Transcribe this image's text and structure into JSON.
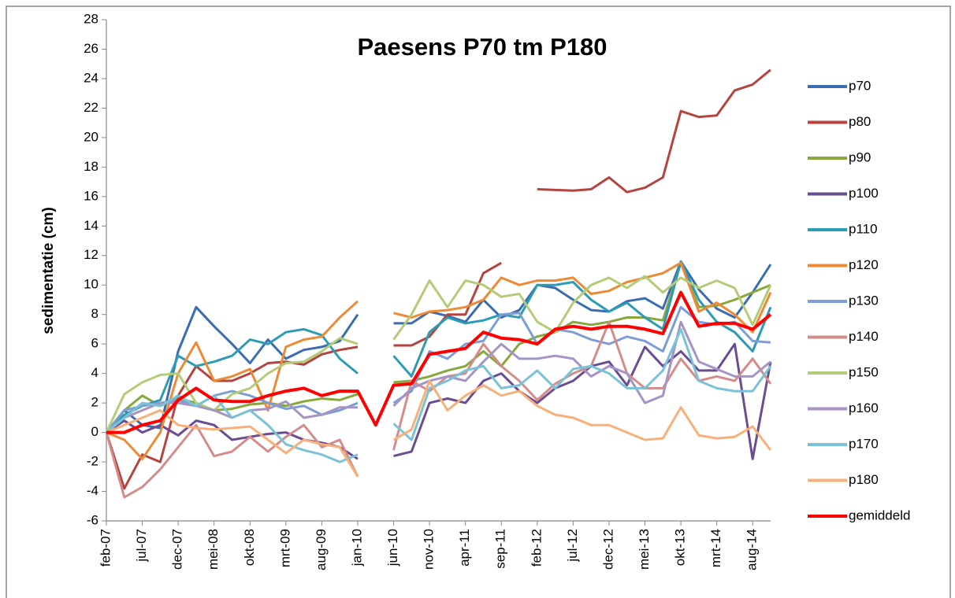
{
  "chart_data": {
    "type": "line",
    "title": "Paesens P70 tm P180",
    "y_label": "sedimentatie (cm)",
    "categories": [
      "feb-07",
      null,
      "jul-07",
      null,
      "dec-07",
      null,
      "mei-08",
      null,
      "okt-08",
      null,
      "mrt-09",
      null,
      "aug-09",
      null,
      "jan-10",
      null,
      "jun-10",
      null,
      "nov-10",
      null,
      "apr-11",
      null,
      "sep-11",
      null,
      "feb-12",
      null,
      "jul-12",
      null,
      "dec-12",
      null,
      "mei-13",
      null,
      "okt-13",
      null,
      "mrt-14",
      null,
      "aug-14",
      null
    ],
    "ylim": [
      -6,
      28
    ],
    "yticks": [
      -6,
      -4,
      -2,
      0,
      2,
      4,
      6,
      8,
      10,
      12,
      14,
      16,
      18,
      20,
      22,
      24,
      26,
      28
    ],
    "grid": false,
    "legend": "right",
    "series": [
      {
        "name": "p70",
        "color": "#3b6db0",
        "values": [
          0,
          1.5,
          0.5,
          0.3,
          5.5,
          8.5,
          7.2,
          6,
          4.7,
          6.3,
          5,
          5.6,
          5.8,
          6.2,
          8,
          null,
          7.4,
          7.4,
          8.2,
          7.9,
          7.5,
          9,
          7.8,
          8.3,
          10,
          9.8,
          9,
          8.3,
          8.2,
          8.9,
          9.1,
          8.4,
          11.6,
          9.7,
          8.4,
          7.8,
          9.5,
          11.4
        ]
      },
      {
        "name": "p80",
        "color": "#b3443f",
        "values": [
          0,
          -3.8,
          -1.5,
          -2,
          2.5,
          4.5,
          3.5,
          3.5,
          4,
          4.7,
          4.8,
          4.6,
          5.3,
          5.6,
          5.8,
          null,
          5.9,
          5.9,
          6.5,
          8,
          8,
          10.8,
          11.5,
          null,
          16.5,
          16.45,
          16.4,
          16.5,
          17.3,
          16.3,
          16.6,
          17.3,
          21.8,
          21.4,
          21.5,
          23.2,
          23.6,
          24.6
        ]
      },
      {
        "name": "p90",
        "color": "#86a83c",
        "values": [
          0,
          1.5,
          2.5,
          1.8,
          2.3,
          2,
          1.5,
          1.6,
          1.9,
          2,
          1.8,
          2.1,
          2.3,
          2.2,
          2.6,
          null,
          3.4,
          3.5,
          3.8,
          4.2,
          4.5,
          5.5,
          4.5,
          6,
          6.5,
          6.8,
          7.5,
          7.3,
          7.5,
          7.8,
          7.8,
          7.6,
          11.5,
          8.5,
          8.6,
          9,
          9.5,
          10
        ]
      },
      {
        "name": "p100",
        "color": "#6a4c93",
        "values": [
          0,
          0.8,
          0,
          0.5,
          -0.2,
          0.8,
          0.5,
          -0.5,
          -0.3,
          -0.1,
          0,
          -0.5,
          -0.7,
          -1,
          -1.8,
          null,
          -1.6,
          -1.3,
          2,
          2.3,
          2,
          3.5,
          4,
          2.8,
          2,
          3,
          3.5,
          4.5,
          4.8,
          3.2,
          5.8,
          4.5,
          5.5,
          4.2,
          4.2,
          6,
          -1.8,
          4.8
        ]
      },
      {
        "name": "p110",
        "color": "#2e9bb5",
        "values": [
          0,
          1.2,
          1.8,
          2.2,
          5.2,
          4.5,
          4.8,
          5.2,
          6.3,
          6,
          6.8,
          7,
          6.6,
          5,
          4,
          null,
          5.2,
          3.8,
          6.8,
          7.8,
          7.4,
          7.6,
          8,
          7.8,
          10,
          10,
          10.2,
          9,
          8.2,
          8.8,
          7.8,
          7,
          11.6,
          9,
          7.5,
          6.8,
          5.5,
          8.5
        ]
      },
      {
        "name": "p120",
        "color": "#ec8a35",
        "values": [
          0,
          -0.5,
          -1.8,
          0,
          4,
          6.1,
          3.5,
          3.8,
          4.3,
          1.5,
          5.8,
          6.3,
          6.5,
          7.8,
          8.9,
          null,
          8.1,
          7.8,
          8.2,
          8.3,
          8.5,
          9,
          10.5,
          10,
          10.3,
          10.3,
          10.5,
          9.4,
          9.6,
          10.2,
          10.5,
          10.8,
          11.5,
          8.2,
          8.8,
          8,
          6.8,
          9.5
        ]
      },
      {
        "name": "p130",
        "color": "#7c9ed4",
        "values": [
          0,
          1.5,
          1.8,
          2,
          2.2,
          1.8,
          2.5,
          2.8,
          2.5,
          2,
          1.6,
          1.8,
          1.2,
          1.5,
          2,
          null,
          2,
          2.8,
          5.5,
          5,
          6,
          6.2,
          8,
          8.1,
          6,
          7,
          6.8,
          6.3,
          6,
          6.5,
          6.2,
          5.5,
          8.5,
          7.5,
          7.3,
          7.5,
          6.2,
          6.1
        ]
      },
      {
        "name": "p140",
        "color": "#d48c8a",
        "values": [
          0,
          -4.4,
          -3.7,
          -2.5,
          -1,
          0.5,
          -1.6,
          -1.3,
          -0.3,
          -1.3,
          -0.3,
          0.5,
          -1,
          -0.5,
          -3,
          null,
          -1.2,
          3.5,
          2.8,
          3.8,
          4,
          6,
          4.5,
          3.5,
          2.2,
          3.3,
          4,
          4.5,
          7.5,
          4,
          3,
          3,
          5,
          3.5,
          3.8,
          3.5,
          5,
          3.3
        ]
      },
      {
        "name": "p150",
        "color": "#b2cc77",
        "values": [
          0,
          2.6,
          3.4,
          3.9,
          4,
          2,
          1.5,
          2.6,
          3,
          4,
          4.7,
          4.8,
          5.5,
          6.4,
          6,
          null,
          6.3,
          8,
          10.3,
          8.5,
          10.3,
          10,
          9.2,
          9.4,
          7.5,
          6.8,
          8.8,
          10,
          10.5,
          9.8,
          10.6,
          9.5,
          10.5,
          9.8,
          10.3,
          9.8,
          7.3,
          10
        ]
      },
      {
        "name": "p160",
        "color": "#a594c4",
        "values": [
          0,
          1,
          1.5,
          2,
          2,
          1.8,
          1.5,
          1,
          1.5,
          1.6,
          2.1,
          1,
          1.2,
          1.7,
          1.7,
          null,
          1.8,
          3,
          3.5,
          3.8,
          3.5,
          4.8,
          6,
          5,
          5,
          5.2,
          5,
          3.8,
          4.5,
          4,
          2,
          2.5,
          7.5,
          4.8,
          4.3,
          3.8,
          3.8,
          4.8
        ]
      },
      {
        "name": "p170",
        "color": "#79c3d8",
        "values": [
          0,
          1,
          2,
          1.8,
          2.5,
          1.8,
          2.5,
          1,
          1.5,
          0.5,
          -0.8,
          -1.2,
          -1.5,
          -2,
          -1.5,
          null,
          0.6,
          -0.5,
          3,
          3.5,
          4.2,
          4.5,
          3,
          3.2,
          4.2,
          3,
          4.3,
          4.5,
          4,
          3,
          3,
          4.2,
          7,
          3.5,
          3,
          2.8,
          2.8,
          4.5
        ]
      },
      {
        "name": "p180",
        "color": "#f7b07a",
        "values": [
          0,
          0.5,
          1,
          1.5,
          0.5,
          0.3,
          0.2,
          0.3,
          0.4,
          -0.5,
          -1.4,
          -0.5,
          -0.8,
          -1,
          -3,
          null,
          -0.5,
          0.2,
          3.5,
          1.5,
          2.5,
          3.2,
          2.5,
          2.8,
          1.8,
          1.2,
          1,
          0.5,
          0.5,
          0,
          -0.5,
          -0.4,
          1.7,
          -0.2,
          -0.4,
          -0.3,
          0.4,
          -1.2
        ]
      },
      {
        "name": "gemiddeld",
        "color": "#ff0000",
        "values": [
          0,
          0,
          0.5,
          0.8,
          2.2,
          3,
          2.2,
          2.1,
          2.1,
          2.5,
          2.8,
          3,
          2.5,
          2.8,
          2.8,
          0.5,
          3.2,
          3.3,
          5.3,
          5.5,
          5.7,
          6.8,
          6.4,
          6.3,
          6,
          7,
          7.2,
          7,
          7.2,
          7.2,
          7,
          6.7,
          9.5,
          7.2,
          7.4,
          7.4,
          7,
          8
        ]
      }
    ]
  }
}
